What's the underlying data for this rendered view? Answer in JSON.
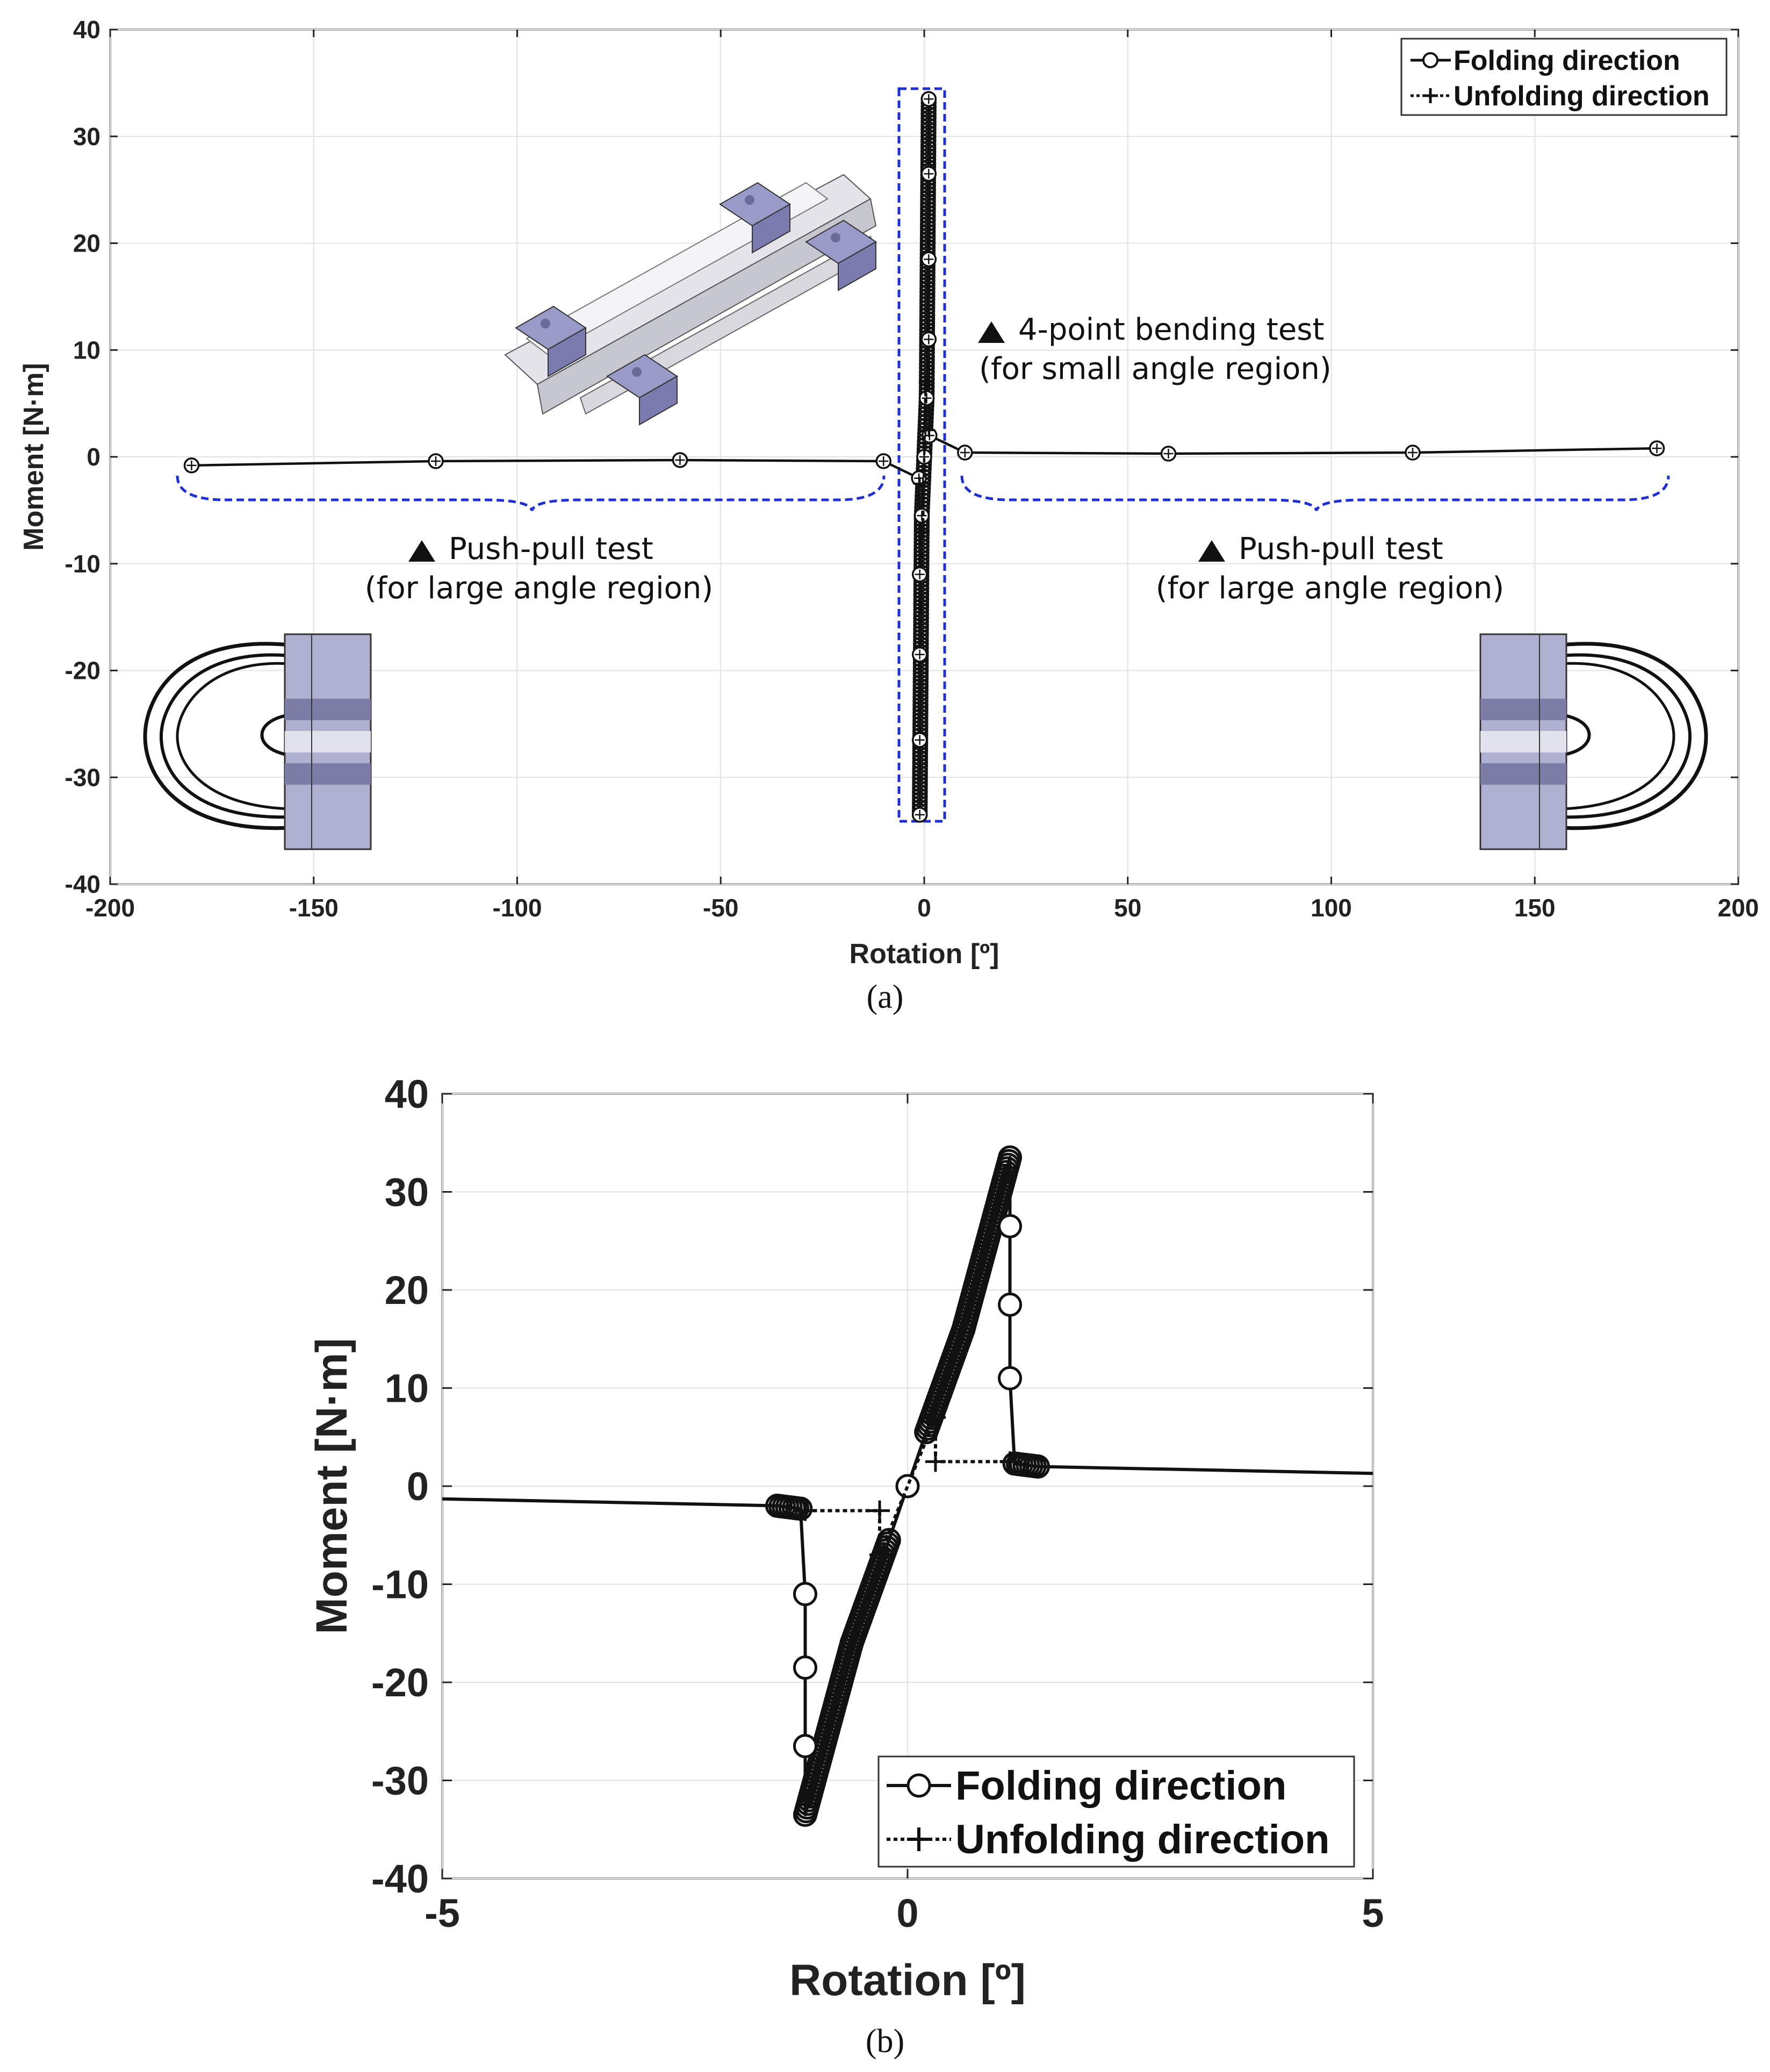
{
  "chart_data": [
    {
      "type": "line",
      "panel_label": "(a)",
      "xlabel": "Rotation [º]",
      "ylabel": "Moment [N·m]",
      "xlim": [
        -200,
        200
      ],
      "ylim": [
        -40,
        40
      ],
      "xticks": [
        -200,
        -150,
        -100,
        -50,
        0,
        50,
        100,
        150,
        200
      ],
      "yticks": [
        -40,
        -30,
        -20,
        -10,
        0,
        10,
        20,
        30,
        40
      ],
      "grid": true,
      "legend_position": "top-right",
      "legend": [
        "Folding direction",
        "Unfolding direction"
      ],
      "annotations": [
        {
          "text": "4-point bending test",
          "text2": "(for small angle region)"
        },
        {
          "text": "Push-pull test",
          "text2": "(for large angle region)"
        },
        {
          "text": "Push-pull test",
          "text2": "(for large angle region)"
        }
      ],
      "series": [
        {
          "name": "Folding direction",
          "marker": "circle",
          "x": [
            -180,
            -120,
            -60,
            -10,
            -1.3,
            -1.1,
            -1.1,
            -1.1,
            -1.1,
            -0.6,
            0,
            0.6,
            1.1,
            1.1,
            1.1,
            1.1,
            1.3,
            10,
            60,
            120,
            180
          ],
          "y": [
            -0.8,
            -0.4,
            -0.3,
            -0.4,
            -2.0,
            -11,
            -18.5,
            -26.5,
            -33.5,
            -5.5,
            0,
            5.5,
            33.5,
            26.5,
            18.5,
            11,
            2.0,
            0.4,
            0.3,
            0.4,
            0.8
          ]
        },
        {
          "name": "Unfolding direction",
          "marker": "plus",
          "x": [
            -1.1,
            -0.3,
            -0.3,
            0.3,
            0.3,
            1.1
          ],
          "y": [
            -2.5,
            -2.5,
            -7,
            7,
            2.5,
            2.5
          ]
        }
      ]
    },
    {
      "type": "line",
      "panel_label": "(b)",
      "xlabel": "Rotation [º]",
      "ylabel": "Moment [N·m]",
      "xlim": [
        -5,
        5
      ],
      "ylim": [
        -40,
        40
      ],
      "xticks": [
        -5,
        0,
        5
      ],
      "yticks": [
        -40,
        -30,
        -20,
        -10,
        0,
        10,
        20,
        30,
        40
      ],
      "grid": true,
      "legend_position": "bottom-right",
      "legend": [
        "Folding direction",
        "Unfolding direction"
      ],
      "series": [
        {
          "name": "Folding direction",
          "marker": "circle",
          "x": [
            -5,
            -1.4,
            -1.15,
            -1.1,
            -1.1,
            -1.1,
            -1.1,
            -0.6,
            -0.2,
            0,
            0.2,
            0.6,
            1.1,
            1.1,
            1.1,
            1.1,
            1.15,
            1.4,
            5
          ],
          "y": [
            -1.3,
            -2.0,
            -2.3,
            -11,
            -18.5,
            -26.5,
            -33.5,
            -16,
            -5.5,
            0,
            5.5,
            16,
            33.5,
            26.5,
            18.5,
            11,
            2.3,
            2.0,
            1.3
          ],
          "open_markers": [
            [
              -1.1,
              -11
            ],
            [
              -1.1,
              -18.5
            ],
            [
              -1.1,
              -26.5
            ],
            [
              0,
              0
            ],
            [
              1.1,
              11
            ],
            [
              1.1,
              18.5
            ],
            [
              1.1,
              26.5
            ]
          ]
        },
        {
          "name": "Unfolding direction",
          "marker": "plus",
          "x": [
            -1.1,
            -0.3,
            -0.3,
            0.3,
            0.3,
            1.1
          ],
          "y": [
            -2.5,
            -2.5,
            -7,
            7,
            2.5,
            2.5
          ]
        }
      ]
    }
  ]
}
